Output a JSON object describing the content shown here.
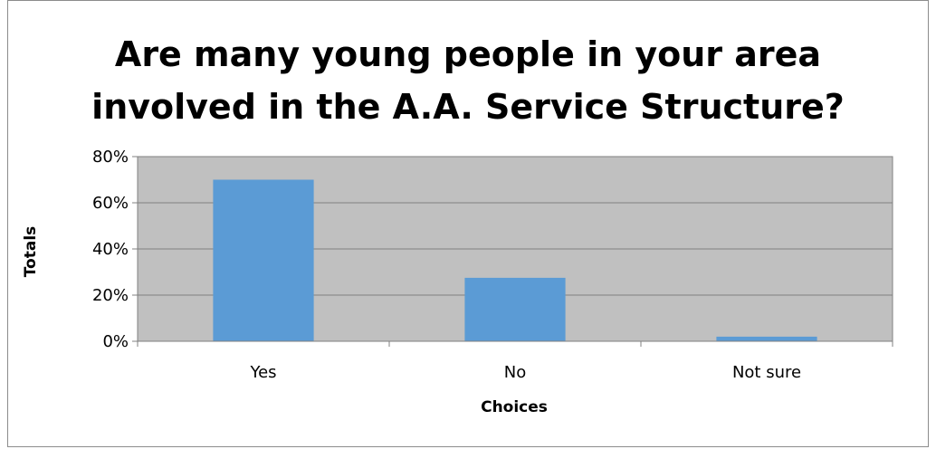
{
  "chart_data": {
    "type": "bar",
    "title_lines": [
      "Are many young people in your area",
      "involved in the A.A. Service Structure?"
    ],
    "xlabel": "Choices",
    "ylabel": "Totals",
    "categories": [
      "Yes",
      "No",
      "Not sure"
    ],
    "values": [
      70,
      27.5,
      2
    ],
    "ylim": [
      0,
      80
    ],
    "yticks": [
      0,
      20,
      40,
      60,
      80
    ],
    "ytick_labels": [
      "0%",
      "20%",
      "40%",
      "60%",
      "80%"
    ],
    "grid": true,
    "legend": "none",
    "colors": {
      "bar": "#5b9bd5",
      "plot_background": "#c0c0c0",
      "gridline": "#808080"
    }
  }
}
